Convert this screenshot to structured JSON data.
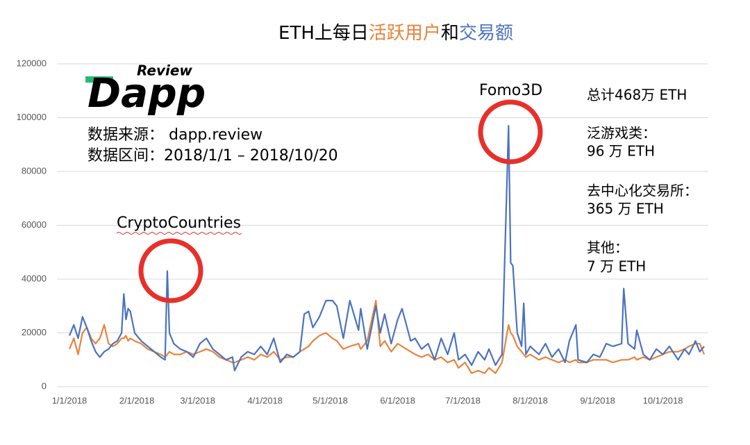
{
  "chart_data": {
    "type": "line",
    "title_prefix": "ETH上每日",
    "title_joiner": "和",
    "logo": {
      "small": "Review",
      "big": "Dapp"
    },
    "source": [
      "数据来源： dapp.review",
      "数据区间：2018/1/1 – 2018/10/20"
    ],
    "annotations": [
      "CryptoCountries",
      "Fomo3D"
    ],
    "summary": [
      "总计468万 ETH",
      "泛游戏类：",
      "96 万 ETH",
      "去中心化交易所：",
      "365 万 ETH",
      "其他：",
      "7 万 ETH"
    ],
    "x": [
      "2018-01-01",
      "2018-01-03",
      "2018-01-05",
      "2018-01-07",
      "2018-01-09",
      "2018-01-11",
      "2018-01-13",
      "2018-01-15",
      "2018-01-17",
      "2018-01-19",
      "2018-01-21",
      "2018-01-23",
      "2018-01-25",
      "2018-01-26",
      "2018-01-27",
      "2018-01-28",
      "2018-01-29",
      "2018-01-31",
      "2018-02-03",
      "2018-02-06",
      "2018-02-09",
      "2018-02-12",
      "2018-02-14",
      "2018-02-15",
      "2018-02-16",
      "2018-02-18",
      "2018-02-21",
      "2018-02-24",
      "2018-02-27",
      "2018-03-02",
      "2018-03-05",
      "2018-03-08",
      "2018-03-11",
      "2018-03-14",
      "2018-03-17",
      "2018-03-18",
      "2018-03-21",
      "2018-03-24",
      "2018-03-27",
      "2018-03-30",
      "2018-04-02",
      "2018-04-05",
      "2018-04-08",
      "2018-04-11",
      "2018-04-14",
      "2018-04-17",
      "2018-04-19",
      "2018-04-21",
      "2018-04-23",
      "2018-04-26",
      "2018-04-29",
      "2018-05-02",
      "2018-05-04",
      "2018-05-07",
      "2018-05-10",
      "2018-05-14",
      "2018-05-15",
      "2018-05-18",
      "2018-05-22",
      "2018-05-24",
      "2018-05-26",
      "2018-05-29",
      "2018-06-01",
      "2018-06-03",
      "2018-06-07",
      "2018-06-09",
      "2018-06-12",
      "2018-06-15",
      "2018-06-18",
      "2018-06-21",
      "2018-06-24",
      "2018-06-27",
      "2018-06-29",
      "2018-07-02",
      "2018-07-05",
      "2018-07-08",
      "2018-07-11",
      "2018-07-13",
      "2018-07-16",
      "2018-07-19",
      "2018-07-22",
      "2018-07-23",
      "2018-07-24",
      "2018-07-26",
      "2018-07-28",
      "2018-07-29",
      "2018-07-30",
      "2018-08-01",
      "2018-08-05",
      "2018-08-08",
      "2018-08-11",
      "2018-08-14",
      "2018-08-17",
      "2018-08-19",
      "2018-08-22",
      "2018-08-23",
      "2018-08-27",
      "2018-08-30",
      "2018-09-02",
      "2018-09-05",
      "2018-09-08",
      "2018-09-12",
      "2018-09-13",
      "2018-09-15",
      "2018-09-18",
      "2018-09-19",
      "2018-09-22",
      "2018-09-25",
      "2018-09-28",
      "2018-10-01",
      "2018-10-04",
      "2018-10-08",
      "2018-10-11",
      "2018-10-13",
      "2018-10-16",
      "2018-10-18",
      "2018-10-20"
    ],
    "series": [
      {
        "name": "活跃用户",
        "color": "#e8833a",
        "values": [
          14000,
          18000,
          12000,
          20000,
          22000,
          18000,
          16000,
          18000,
          23000,
          16000,
          15000,
          16000,
          18000,
          18000,
          19000,
          17000,
          18000,
          17000,
          16000,
          14000,
          13000,
          12000,
          11000,
          12000,
          13000,
          12000,
          12000,
          13000,
          12000,
          13000,
          14000,
          13000,
          11000,
          10000,
          9000,
          9000,
          10000,
          11000,
          10000,
          12000,
          11000,
          13000,
          10000,
          11000,
          11000,
          13000,
          14000,
          15000,
          17000,
          19000,
          20000,
          18000,
          17000,
          14000,
          15000,
          16000,
          14000,
          17000,
          32000,
          15000,
          17000,
          13000,
          16000,
          15000,
          13000,
          12000,
          11000,
          12000,
          10000,
          11000,
          9000,
          10000,
          7000,
          9000,
          5000,
          6000,
          5000,
          7000,
          5000,
          9000,
          23000,
          20000,
          19000,
          15000,
          13000,
          12000,
          11000,
          12000,
          10000,
          11000,
          10000,
          9000,
          10000,
          9000,
          10000,
          9000,
          9000,
          10000,
          10000,
          10000,
          9000,
          10000,
          10000,
          10000,
          11000,
          10000,
          11000,
          10000,
          11000,
          12000,
          13000,
          13000,
          14000,
          15000,
          16000,
          16000,
          12000
        ]
      },
      {
        "name": "交易额",
        "color": "#4a72c0",
        "values": [
          19000,
          23000,
          18000,
          26000,
          22000,
          17000,
          13000,
          11000,
          13000,
          14000,
          16000,
          17000,
          20000,
          34500,
          25000,
          29000,
          28000,
          20000,
          17000,
          15000,
          13000,
          11000,
          10000,
          43000,
          20000,
          16000,
          14000,
          13000,
          11000,
          16000,
          18000,
          14000,
          12000,
          10000,
          11000,
          6000,
          11000,
          13000,
          12000,
          15000,
          12000,
          18000,
          9000,
          12000,
          11000,
          13000,
          27000,
          28000,
          22000,
          26000,
          32000,
          32000,
          30000,
          18000,
          32000,
          21000,
          29000,
          14000,
          30000,
          20000,
          27000,
          16000,
          25000,
          29000,
          17000,
          18000,
          14000,
          16000,
          10000,
          18000,
          12000,
          20000,
          10000,
          12000,
          8000,
          13000,
          10000,
          14000,
          8000,
          12000,
          97000,
          46000,
          45000,
          20000,
          15000,
          31000,
          12000,
          15000,
          12000,
          16000,
          11000,
          14000,
          9000,
          17000,
          23000,
          10000,
          9000,
          12000,
          11000,
          16000,
          15000,
          16000,
          36500,
          16000,
          14000,
          21000,
          12000,
          10000,
          14000,
          12000,
          15000,
          10000,
          14000,
          12000,
          17000,
          13000,
          15000
        ]
      }
    ],
    "xlim": [
      "2018-01-01",
      "2018-10-20"
    ],
    "xticks": [
      {
        "value": "2018-01-01",
        "label": "1/1/2018"
      },
      {
        "value": "2018-02-01",
        "label": "2/1/2018"
      },
      {
        "value": "2018-03-01",
        "label": "3/1/2018"
      },
      {
        "value": "2018-04-01",
        "label": "4/1/2018"
      },
      {
        "value": "2018-05-01",
        "label": "5/1/2018"
      },
      {
        "value": "2018-06-01",
        "label": "6/1/2018"
      },
      {
        "value": "2018-07-01",
        "label": "7/1/2018"
      },
      {
        "value": "2018-08-01",
        "label": "8/1/2018"
      },
      {
        "value": "2018-09-01",
        "label": "9/1/2018"
      },
      {
        "value": "2018-10-01",
        "label": "10/1/2018"
      }
    ],
    "ylim": [
      0,
      120000
    ],
    "yticks": [
      0,
      20000,
      40000,
      60000,
      80000,
      100000,
      120000
    ],
    "grid": true
  }
}
